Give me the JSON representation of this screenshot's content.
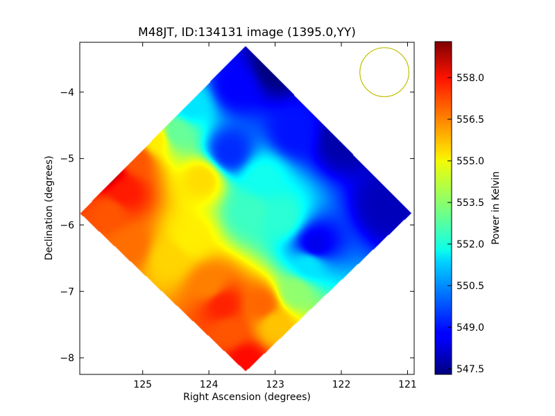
{
  "chart_data": {
    "type": "heatmap",
    "title": "M48JT, ID:134131 image (1395.0,YY)",
    "xlabel": "Right Ascension (degrees)",
    "ylabel": "Declination (degrees)",
    "colorbar_label": "Power in Kelvin",
    "xlim": [
      125.95,
      120.9
    ],
    "ylim": [
      -8.25,
      -3.25
    ],
    "x_ticks": [
      125,
      124,
      123,
      122,
      121
    ],
    "y_ticks": [
      -4,
      -5,
      -6,
      -7,
      -8
    ],
    "x_tick_labels": [
      "125",
      "124",
      "123",
      "122",
      "121"
    ],
    "y_tick_labels": [
      "−4",
      "−5",
      "−6",
      "−7",
      "−8"
    ],
    "colorbar_range": [
      547.3,
      559.3
    ],
    "colorbar_ticks": [
      547.5,
      549.0,
      550.5,
      552.0,
      553.5,
      555.0,
      556.5,
      558.0
    ],
    "colorbar_tick_labels": [
      "547.5",
      "549.0",
      "550.5",
      "552.0",
      "553.5",
      "555.0",
      "556.5",
      "558.0"
    ],
    "colormap": "jet",
    "map_footprint": {
      "corners_radec": [
        [
          123.45,
          -3.3
        ],
        [
          120.95,
          -5.82
        ],
        [
          123.45,
          -8.2
        ],
        [
          125.95,
          -5.82
        ]
      ]
    },
    "beam_circle": {
      "center": [
        121.35,
        -3.7
      ],
      "radius_deg": 0.37,
      "color": "#bfbf00"
    },
    "sources": [
      {
        "ra": 123.0,
        "dec": -3.6,
        "value": 547.3
      },
      {
        "ra": 122.0,
        "dec": -4.7,
        "value": 547.8
      },
      {
        "ra": 121.3,
        "dec": -5.7,
        "value": 548.0
      },
      {
        "ra": 123.6,
        "dec": -3.9,
        "value": 548.8
      },
      {
        "ra": 122.7,
        "dec": -4.6,
        "value": 549.0
      },
      {
        "ra": 123.7,
        "dec": -4.9,
        "value": 549.3
      },
      {
        "ra": 122.4,
        "dec": -6.3,
        "value": 548.6
      },
      {
        "ra": 122.5,
        "dec": -6.6,
        "value": 551.5
      },
      {
        "ra": 124.3,
        "dec": -4.2,
        "value": 551.5
      },
      {
        "ra": 124.5,
        "dec": -4.6,
        "value": 553.0
      },
      {
        "ra": 123.2,
        "dec": -5.3,
        "value": 552.0
      },
      {
        "ra": 122.9,
        "dec": -5.9,
        "value": 552.3
      },
      {
        "ra": 123.4,
        "dec": -5.8,
        "value": 552.5
      },
      {
        "ra": 122.7,
        "dec": -7.0,
        "value": 553.5
      },
      {
        "ra": 124.8,
        "dec": -4.7,
        "value": 555.0
      },
      {
        "ra": 124.1,
        "dec": -5.3,
        "value": 555.2
      },
      {
        "ra": 124.3,
        "dec": -6.2,
        "value": 555.0
      },
      {
        "ra": 124.6,
        "dec": -6.5,
        "value": 555.3
      },
      {
        "ra": 123.0,
        "dec": -7.5,
        "value": 555.5
      },
      {
        "ra": 125.1,
        "dec": -5.0,
        "value": 556.8
      },
      {
        "ra": 125.5,
        "dec": -5.8,
        "value": 556.8
      },
      {
        "ra": 125.2,
        "dec": -6.3,
        "value": 556.5
      },
      {
        "ra": 124.0,
        "dec": -6.9,
        "value": 556.3
      },
      {
        "ra": 123.2,
        "dec": -7.2,
        "value": 556.6
      },
      {
        "ra": 123.7,
        "dec": -7.6,
        "value": 556.8
      },
      {
        "ra": 125.55,
        "dec": -5.2,
        "value": 558.6
      },
      {
        "ra": 125.3,
        "dec": -5.5,
        "value": 557.5
      },
      {
        "ra": 123.45,
        "dec": -8.05,
        "value": 557.7
      },
      {
        "ra": 123.8,
        "dec": -7.2,
        "value": 557.4
      }
    ]
  }
}
